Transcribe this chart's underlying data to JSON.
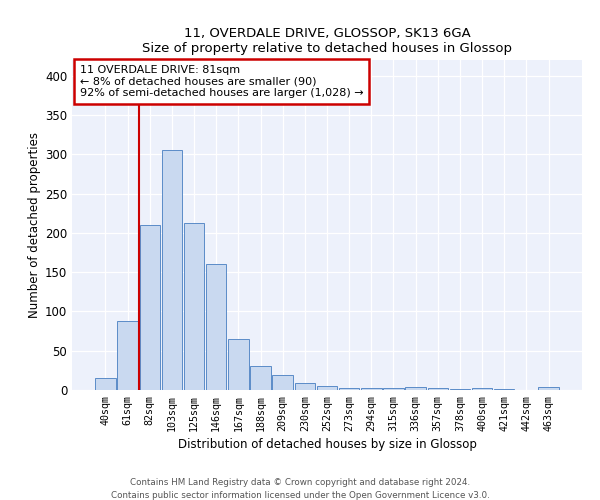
{
  "title1": "11, OVERDALE DRIVE, GLOSSOP, SK13 6GA",
  "title2": "Size of property relative to detached houses in Glossop",
  "xlabel": "Distribution of detached houses by size in Glossop",
  "ylabel": "Number of detached properties",
  "categories": [
    "40sqm",
    "61sqm",
    "82sqm",
    "103sqm",
    "125sqm",
    "146sqm",
    "167sqm",
    "188sqm",
    "209sqm",
    "230sqm",
    "252sqm",
    "273sqm",
    "294sqm",
    "315sqm",
    "336sqm",
    "357sqm",
    "378sqm",
    "400sqm",
    "421sqm",
    "442sqm",
    "463sqm"
  ],
  "values": [
    15,
    88,
    210,
    305,
    213,
    160,
    65,
    31,
    19,
    9,
    5,
    2,
    2,
    2,
    4,
    2,
    1,
    3,
    1,
    0,
    4
  ],
  "bar_color": "#c9d9f0",
  "bar_edge_color": "#5b8cc8",
  "vline_color": "#cc0000",
  "annotation_lines": [
    "11 OVERDALE DRIVE: 81sqm",
    "← 8% of detached houses are smaller (90)",
    "92% of semi-detached houses are larger (1,028) →"
  ],
  "ylim": [
    0,
    420
  ],
  "yticks": [
    0,
    50,
    100,
    150,
    200,
    250,
    300,
    350,
    400
  ],
  "bg_color": "#edf1fb",
  "grid_color": "#ffffff",
  "footer1": "Contains HM Land Registry data © Crown copyright and database right 2024.",
  "footer2": "Contains public sector information licensed under the Open Government Licence v3.0."
}
